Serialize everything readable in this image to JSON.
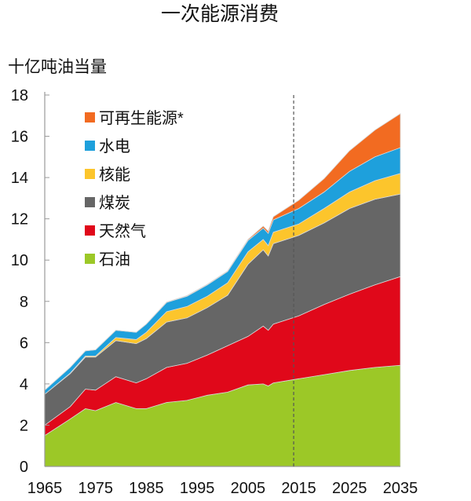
{
  "chart_data": {
    "type": "area",
    "stacked": true,
    "title": "一次能源消费",
    "ylabel": "十亿吨油当量",
    "xlabel": "",
    "xlim": [
      1965,
      2035
    ],
    "ylim": [
      0,
      18
    ],
    "x_ticks": [
      1965,
      1975,
      1985,
      1995,
      2005,
      2015,
      2025,
      2035
    ],
    "y_ticks": [
      0,
      2,
      4,
      6,
      8,
      10,
      12,
      14,
      16,
      18
    ],
    "grid": false,
    "legend_position": "top-left",
    "projection_marker_year": 2014,
    "x": [
      1965,
      1970,
      1973,
      1975,
      1979,
      1983,
      1985,
      1989,
      1993,
      1997,
      2001,
      2005,
      2008,
      2009,
      2010,
      2015,
      2020,
      2025,
      2030,
      2035
    ],
    "series": [
      {
        "name": "石油",
        "color": "#9cc827",
        "values": [
          1.5,
          2.3,
          2.8,
          2.7,
          3.1,
          2.8,
          2.8,
          3.1,
          3.2,
          3.45,
          3.6,
          3.95,
          4.0,
          3.9,
          4.05,
          4.25,
          4.45,
          4.65,
          4.8,
          4.9
        ]
      },
      {
        "name": "天然气",
        "color": "#e0081a",
        "values": [
          0.5,
          0.6,
          0.95,
          1.0,
          1.25,
          1.25,
          1.45,
          1.7,
          1.8,
          1.95,
          2.25,
          2.35,
          2.8,
          2.7,
          2.85,
          3.05,
          3.4,
          3.7,
          4.0,
          4.3
        ]
      },
      {
        "name": "煤炭",
        "color": "#666666",
        "values": [
          1.5,
          1.6,
          1.55,
          1.6,
          1.75,
          1.9,
          1.95,
          2.2,
          2.2,
          2.3,
          2.45,
          3.5,
          3.7,
          3.6,
          3.9,
          3.9,
          3.95,
          4.15,
          4.15,
          4.0
        ]
      },
      {
        "name": "核能",
        "color": "#fcc52c",
        "values": [
          0.0,
          0.02,
          0.05,
          0.05,
          0.15,
          0.2,
          0.3,
          0.5,
          0.55,
          0.55,
          0.6,
          0.6,
          0.5,
          0.5,
          0.55,
          0.55,
          0.7,
          0.8,
          0.9,
          1.0
        ]
      },
      {
        "name": "水电",
        "color": "#1ea0dc",
        "values": [
          0.2,
          0.28,
          0.25,
          0.3,
          0.35,
          0.35,
          0.4,
          0.45,
          0.5,
          0.55,
          0.55,
          0.55,
          0.55,
          0.6,
          0.6,
          0.75,
          0.8,
          1.0,
          1.15,
          1.25
        ]
      },
      {
        "name": "可再生能源*",
        "color": "#f26b21",
        "values": [
          0,
          0,
          0,
          0,
          0,
          0,
          0,
          0.02,
          0.03,
          0.03,
          0.03,
          0.05,
          0.1,
          0.1,
          0.15,
          0.4,
          0.65,
          1.0,
          1.3,
          1.65
        ]
      }
    ],
    "legend_order": [
      5,
      4,
      3,
      2,
      1,
      0
    ]
  }
}
